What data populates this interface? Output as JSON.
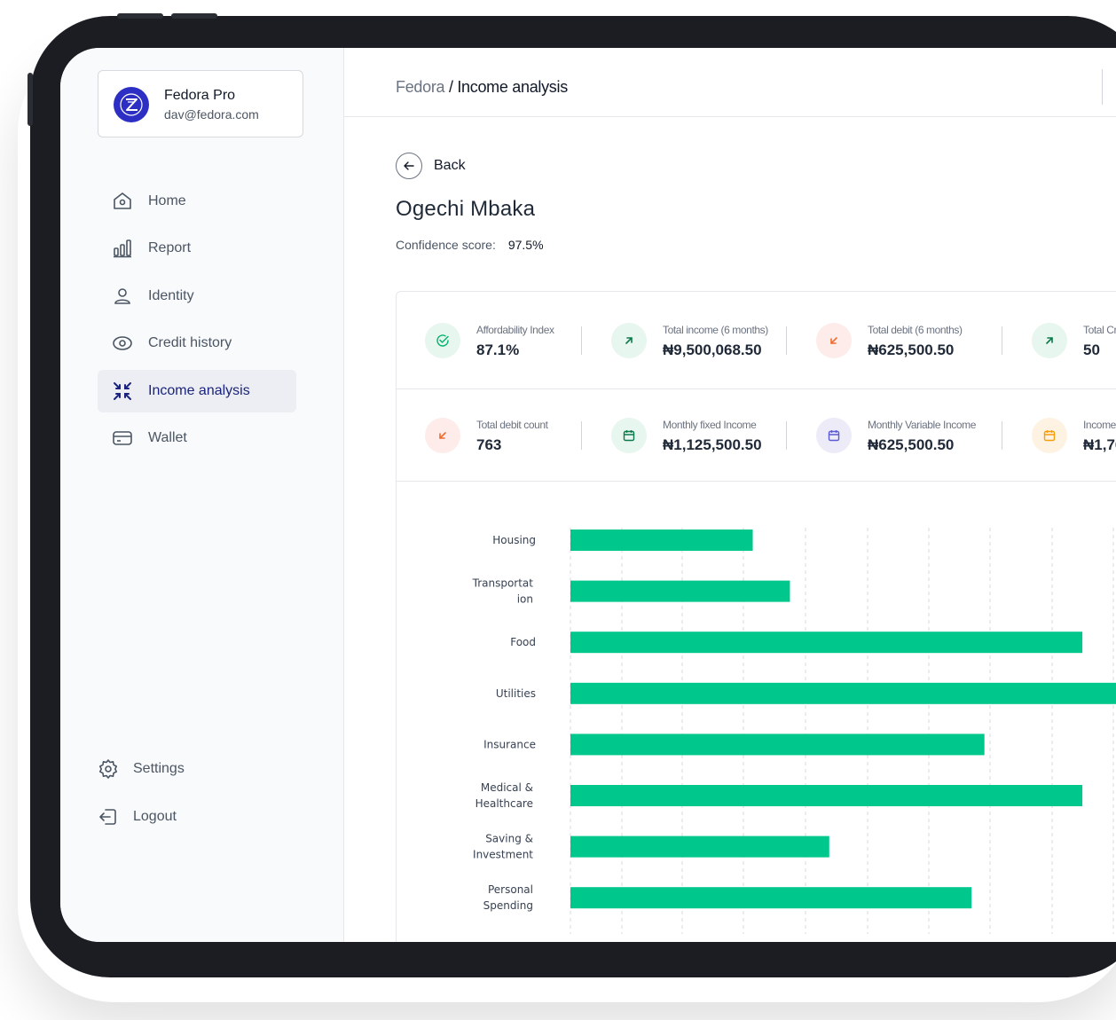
{
  "profile": {
    "name": "Fedora Pro",
    "email": "dav@fedora.com"
  },
  "sidebar": {
    "items": [
      {
        "label": "Home",
        "icon": "home-icon"
      },
      {
        "label": "Report",
        "icon": "bar-chart-icon"
      },
      {
        "label": "Identity",
        "icon": "user-icon"
      },
      {
        "label": "Credit history",
        "icon": "eye-icon"
      },
      {
        "label": "Income analysis",
        "icon": "collapse-arrows-icon",
        "active": true
      },
      {
        "label": "Wallet",
        "icon": "wallet-icon"
      }
    ],
    "bottom": [
      {
        "label": "Settings",
        "icon": "gear-icon"
      },
      {
        "label": "Logout",
        "icon": "logout-icon"
      }
    ]
  },
  "header": {
    "breadcrumb_root": "Fedora",
    "breadcrumb_sep": "/",
    "breadcrumb_current": "Income analysis"
  },
  "back_label": "Back",
  "person": {
    "name": "Ogechi Mbaka",
    "confidence_label": "Confidence score:",
    "confidence_value": "97.5%"
  },
  "stats_row1": [
    {
      "label": "Affordability Index",
      "value": "87.1%",
      "icon": "check-circle-icon",
      "tone": "green"
    },
    {
      "label": "Total income (6 months)",
      "value": "₦9,500,068.50",
      "icon": "arrow-up-right-icon",
      "tone": "green"
    },
    {
      "label": "Total debit (6 months)",
      "value": "₦625,500.50",
      "icon": "arrow-down-left-icon",
      "tone": "red"
    },
    {
      "label": "Total Cr",
      "value": "50",
      "icon": "arrow-up-right-icon",
      "tone": "green"
    }
  ],
  "stats_row2": [
    {
      "label": "Total debit count",
      "value": "763",
      "icon": "arrow-down-left-icon",
      "tone": "red"
    },
    {
      "label": "Monthly fixed Income",
      "value": "₦1,125,500.50",
      "icon": "calendar-icon",
      "tone": "green"
    },
    {
      "label": "Monthly Variable Income",
      "value": "₦625,500.50",
      "icon": "calendar-icon",
      "tone": "purple"
    },
    {
      "label": "Income",
      "value": "₦1,76",
      "icon": "calendar-icon",
      "tone": "orange"
    }
  ],
  "colors": {
    "bar": "#00c78c",
    "accent": "#1a237e",
    "green_icon": "#00b36b",
    "red_icon": "#ef6c2f",
    "purple_icon": "#5b5bd6",
    "orange_icon": "#f59e0b"
  },
  "chart_data": {
    "type": "bar",
    "orientation": "horizontal",
    "categories": [
      "Housing",
      "Transportation",
      "Food",
      "Utilities",
      "Insurance",
      "Medical & Healthcare",
      "Saving & Investment",
      "Personal Spending"
    ],
    "category_display": [
      [
        "Housing"
      ],
      [
        "Transportat",
        "ion"
      ],
      [
        "Food"
      ],
      [
        "Utilities"
      ],
      [
        "Insurance"
      ],
      [
        "Medical &",
        "Healthcare"
      ],
      [
        "Saving &",
        "Investment"
      ],
      [
        "Personal",
        "Spending"
      ]
    ],
    "values": [
      25.5,
      30.7,
      71.6,
      90,
      57.9,
      71.6,
      36.2,
      56.1
    ],
    "xlim": [
      0,
      90
    ],
    "grid": true,
    "legend": "none"
  }
}
